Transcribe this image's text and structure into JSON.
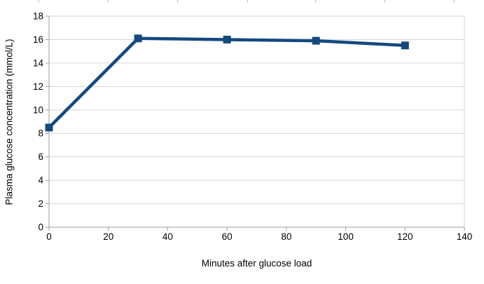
{
  "chart_data": {
    "type": "line",
    "title": "",
    "xlabel": "Minutes after glucose load",
    "ylabel": "Plasma glucose concentration (mmol/L)",
    "series": [
      {
        "x": [
          0,
          30,
          60,
          90,
          120
        ],
        "y": [
          8.5,
          16.1,
          16.0,
          15.9,
          15.5
        ],
        "color": "#15497E",
        "marker": "square",
        "line_width": 4.5,
        "marker_size": 11
      }
    ],
    "xlim": [
      0,
      140
    ],
    "ylim": [
      0,
      18
    ],
    "x_ticks": [
      0,
      20,
      40,
      60,
      80,
      100,
      120,
      140
    ],
    "y_ticks": [
      0,
      2,
      4,
      6,
      8,
      10,
      12,
      14,
      16,
      18
    ],
    "grid": "horizontal",
    "legend_position": "none",
    "colors": {
      "grid": "#d6d6d6",
      "axis": "#9e9e9e",
      "text": "#000000",
      "background": "#ffffff"
    }
  }
}
